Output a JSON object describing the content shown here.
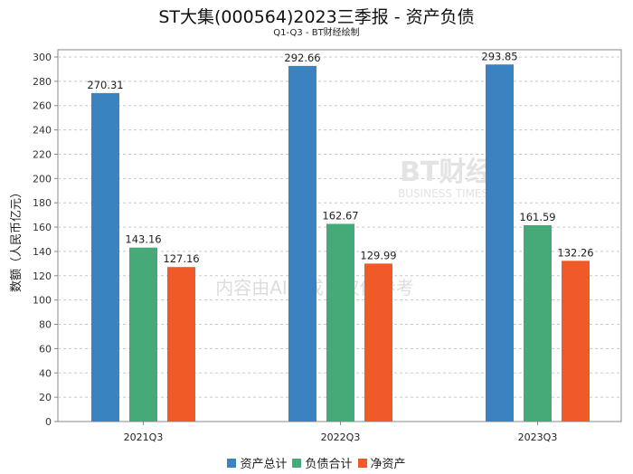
{
  "chart_data": {
    "type": "bar",
    "title": "ST大集(000564)2023三季报 - 资产负债",
    "subtitle": "Q1-Q3 - BT财经绘制",
    "xlabel": "",
    "ylabel": "数额（人民币亿元）",
    "ylim": [
      0,
      300
    ],
    "yticks": [
      0,
      20,
      40,
      60,
      80,
      100,
      120,
      140,
      160,
      180,
      200,
      220,
      240,
      260,
      280,
      300
    ],
    "categories": [
      "2021Q3",
      "2022Q3",
      "2023Q3"
    ],
    "series": [
      {
        "name": "资产总计",
        "color": "#3a82c0",
        "values": [
          270.31,
          292.66,
          293.85
        ]
      },
      {
        "name": "负债合计",
        "color": "#45aa78",
        "values": [
          143.16,
          162.67,
          161.59
        ]
      },
      {
        "name": "净资产",
        "color": "#f05a28",
        "values": [
          127.16,
          129.99,
          132.26
        ]
      }
    ],
    "grid": true,
    "legend": "bottom"
  },
  "watermark": {
    "brand": "BT财经",
    "brand_en": "BUSINESS TIMES",
    "notice": "内容由AI生成，仅供参考"
  }
}
